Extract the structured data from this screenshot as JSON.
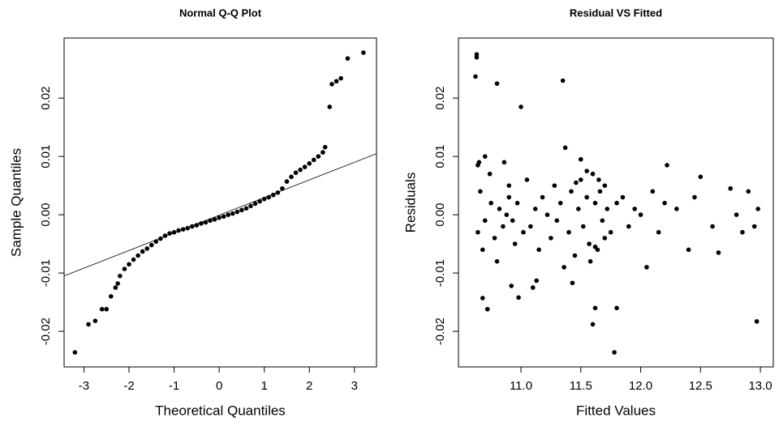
{
  "chart_data": [
    {
      "type": "scatter",
      "title": "Normal Q-Q Plot",
      "x_label": "Theoretical Quantiles",
      "y_label": "Sample Quantiles",
      "color": "#000000",
      "xlim": [
        -3.44,
        3.49
      ],
      "ylim": [
        -0.0261,
        0.0303
      ],
      "xticks": [
        -3,
        -2,
        -1,
        0,
        1,
        2,
        3
      ],
      "yticks": [
        -0.02,
        -0.01,
        {
          "value": 0,
          "label": "0.00"
        },
        0.01,
        0.02
      ],
      "reference_line": {
        "intercept": -8e-05,
        "slope": 0.003025
      },
      "x": [
        -3.2,
        -2.9,
        -2.75,
        -2.6,
        -2.5,
        -2.4,
        -2.3,
        -2.25,
        -2.2,
        -2.1,
        -2.0,
        -1.9,
        -1.8,
        -1.7,
        -1.6,
        -1.5,
        -1.4,
        -1.3,
        -1.2,
        -1.1,
        -1.0,
        -0.9,
        -0.8,
        -0.7,
        -0.6,
        -0.5,
        -0.4,
        -0.3,
        -0.2,
        -0.1,
        0,
        0.1,
        0.2,
        0.3,
        0.4,
        0.5,
        0.6,
        0.7,
        0.8,
        0.9,
        1.0,
        1.1,
        1.2,
        1.3,
        1.4,
        1.5,
        1.6,
        1.7,
        1.8,
        1.9,
        2.0,
        2.1,
        2.2,
        2.3,
        2.35,
        2.45,
        2.5,
        2.6,
        2.7,
        2.85,
        3.2
      ],
      "values": [
        -0.0236,
        -0.0188,
        -0.0182,
        -0.0162,
        -0.0162,
        -0.014,
        -0.0125,
        -0.0118,
        -0.0105,
        -0.0093,
        -0.0085,
        -0.0077,
        -0.007,
        -0.0063,
        -0.0058,
        -0.0052,
        -0.0046,
        -0.0041,
        -0.0036,
        -0.0032,
        -0.003,
        -0.0027,
        -0.0025,
        -0.0023,
        -0.002,
        -0.0018,
        -0.0015,
        -0.0013,
        -0.001,
        -0.0008,
        -0.0005,
        -0.0003,
        0,
        0.0002,
        0.0005,
        0.0008,
        0.0011,
        0.0015,
        0.0019,
        0.0023,
        0.0027,
        0.003,
        0.0034,
        0.0038,
        0.0045,
        0.0057,
        0.0065,
        0.0072,
        0.0077,
        0.0082,
        0.0088,
        0.0094,
        0.01,
        0.0107,
        0.0116,
        0.0185,
        0.0224,
        0.0229,
        0.0234,
        0.0268,
        0.0278
      ]
    },
    {
      "type": "scatter",
      "title": "Residual VS Fitted",
      "x_label": "Fitted Values",
      "y_label": "Residuals",
      "color": "#000000",
      "xlim": [
        10.478,
        13.108
      ],
      "ylim": [
        -0.0261,
        0.0303
      ],
      "xticks": [
        {
          "value": 11,
          "label": "11.0"
        },
        11.5,
        {
          "value": 12,
          "label": "12.0"
        },
        12.5,
        {
          "value": 13,
          "label": "13.0"
        }
      ],
      "yticks": [
        -0.02,
        -0.01,
        {
          "value": 0,
          "label": "0.00"
        },
        0.01,
        0.02
      ],
      "x": [
        10.63,
        10.63,
        10.62,
        10.8,
        11.0,
        11.35,
        11.78,
        11.62,
        11.8,
        11.6,
        10.72,
        10.68,
        10.98,
        12.97,
        11.13,
        11.43,
        10.92,
        11.1,
        12.05,
        10.65,
        10.64,
        10.66,
        10.7,
        10.75,
        10.78,
        10.82,
        10.85,
        10.88,
        10.9,
        10.93,
        10.95,
        10.97,
        11.02,
        11.05,
        11.08,
        11.12,
        11.15,
        11.18,
        11.22,
        11.25,
        11.28,
        11.3,
        11.33,
        11.37,
        11.4,
        11.42,
        11.45,
        11.48,
        11.5,
        11.52,
        11.55,
        11.57,
        11.6,
        11.62,
        11.64,
        11.66,
        11.68,
        11.7,
        11.72,
        11.75,
        11.8,
        11.85,
        11.9,
        11.95,
        12.0,
        12.1,
        12.15,
        12.2,
        12.3,
        12.4,
        12.45,
        12.5,
        12.6,
        12.65,
        12.75,
        12.8,
        12.85,
        12.9,
        12.95,
        12.98,
        10.64,
        10.68,
        10.74,
        10.8,
        10.86,
        10.9,
        11.36,
        11.5,
        11.58,
        11.65,
        11.55,
        11.7,
        12.22,
        10.7,
        11.46,
        11.62
      ],
      "values": [
        0.0275,
        0.027,
        0.0237,
        0.0225,
        0.0185,
        0.023,
        -0.0236,
        -0.016,
        -0.016,
        -0.0188,
        -0.0162,
        -0.0143,
        -0.0142,
        -0.0183,
        -0.0113,
        -0.0117,
        -0.0122,
        -0.0125,
        -0.009,
        0.009,
        -0.003,
        0.004,
        -0.001,
        0.002,
        -0.004,
        0.001,
        -0.002,
        0,
        0.003,
        -0.001,
        -0.005,
        0.002,
        -0.003,
        0.006,
        -0.002,
        0.001,
        -0.006,
        0.003,
        0,
        -0.004,
        0.005,
        -0.001,
        0.002,
        0.0115,
        -0.003,
        0.004,
        -0.007,
        0.001,
        0.006,
        -0.002,
        0.003,
        -0.005,
        0.007,
        0.002,
        -0.006,
        0.004,
        -0.001,
        0.005,
        0.001,
        -0.003,
        0.002,
        0.003,
        -0.002,
        0.001,
        0,
        0.004,
        -0.003,
        0.002,
        0.001,
        -0.006,
        0.003,
        0.0065,
        -0.002,
        -0.0065,
        0.0045,
        0,
        -0.003,
        0.004,
        -0.002,
        0.001,
        0.0085,
        -0.006,
        0.007,
        -0.008,
        0.009,
        0.005,
        -0.009,
        0.0095,
        -0.008,
        0.006,
        0.0075,
        -0.004,
        0.0085,
        0.01,
        0.0055,
        -0.0055
      ]
    }
  ]
}
